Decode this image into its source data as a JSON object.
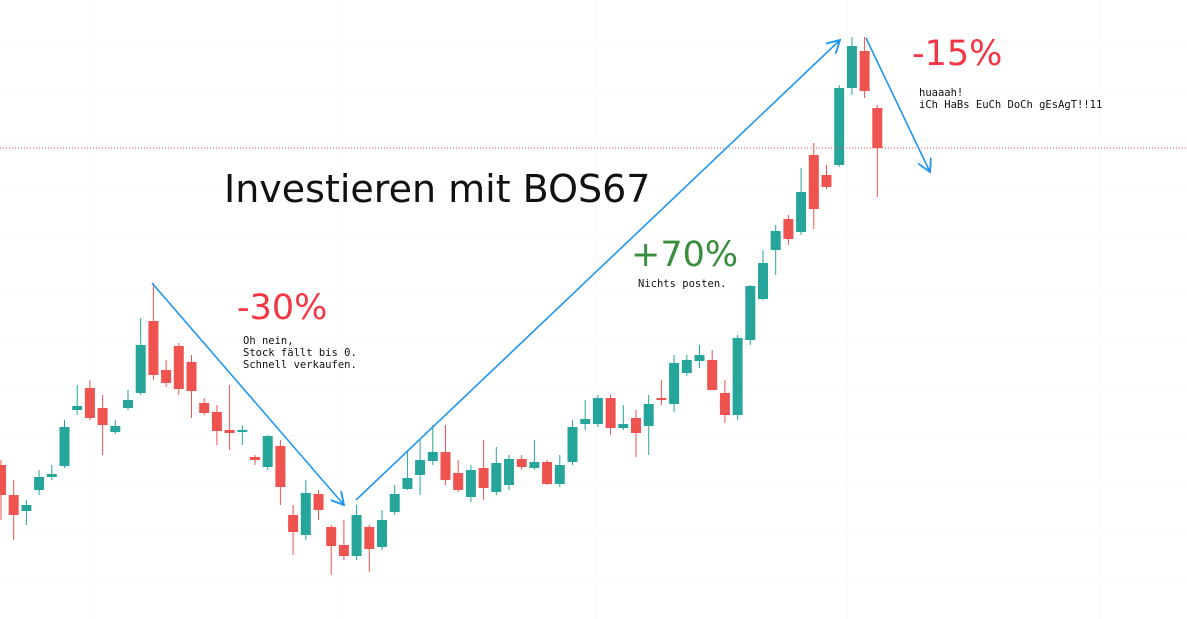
{
  "chart_data": {
    "type": "candlestick",
    "title": "Investieren mit BOS67",
    "up_color": "#26a69a",
    "down_color": "#ef5350",
    "ylim": [
      0,
      619
    ],
    "annotations": [
      {
        "label": "-30%",
        "color": "#f23645",
        "note": [
          "Oh nein,",
          "Stock fällt bis 0.",
          "Schnell verkaufen."
        ]
      },
      {
        "label": "+70%",
        "color": "#388e3c",
        "note": [
          "Nichts posten."
        ]
      },
      {
        "label": "-15%",
        "color": "#f23645",
        "note": [
          "huaaah!",
          "iCh HaBs EuCh DoCh gEsAgT!!11"
        ]
      }
    ],
    "series": [
      {
        "name": "open",
        "values": [
          154,
          124,
          108,
          129,
          142,
          153,
          209,
          231,
          211,
          187,
          211,
          226,
          298,
          249,
          273,
          257,
          216,
          207,
          189,
          187,
          162,
          152,
          173,
          104,
          84,
          125,
          92,
          74,
          63,
          92,
          72,
          107,
          130,
          144,
          158,
          167,
          146,
          122,
          151,
          127,
          134,
          160,
          151,
          157,
          135,
          157,
          195,
          195,
          221,
          191,
          201,
          193,
          221,
          215,
          246,
          258,
          259,
          226,
          204,
          279,
          320,
          369,
          400,
          387,
          464,
          444,
          454,
          531,
          568,
          511
        ]
      },
      {
        "name": "high",
        "values": [
          159,
          139,
          119,
          149,
          154,
          199,
          234,
          239,
          224,
          199,
          229,
          301,
          336,
          259,
          276,
          264,
          221,
          214,
          234,
          194,
          164,
          184,
          179,
          114,
          139,
          129,
          94,
          99,
          114,
          94,
          109,
          134,
          169,
          179,
          194,
          194,
          159,
          154,
          179,
          172,
          164,
          164,
          179,
          159,
          164,
          199,
          219,
          224,
          224,
          214,
          209,
          224,
          239,
          264,
          264,
          274,
          269,
          239,
          284,
          334,
          369,
          394,
          404,
          451,
          476,
          454,
          534,
          582,
          582,
          514
        ]
      },
      {
        "name": "low",
        "values": [
          99,
          79,
          94,
          124,
          139,
          151,
          204,
          199,
          164,
          185,
          209,
          224,
          239,
          232,
          224,
          201,
          204,
          174,
          169,
          174,
          154,
          149,
          114,
          64,
          79,
          99,
          44,
          59,
          59,
          47,
          69,
          104,
          129,
          124,
          154,
          134,
          127,
          117,
          119,
          124,
          129,
          149,
          149,
          134,
          132,
          154,
          189,
          192,
          184,
          189,
          162,
          164,
          214,
          207,
          243,
          251,
          229,
          196,
          199,
          274,
          319,
          344,
          374,
          384,
          390,
          430,
          452,
          524,
          521,
          422
        ]
      },
      {
        "name": "close",
        "values": [
          124,
          104,
          114,
          142,
          145,
          192,
          213,
          201,
          194,
          193,
          219,
          274,
          244,
          236,
          230,
          228,
          206,
          188,
          186,
          189,
          159,
          183,
          132,
          87,
          126,
          109,
          73,
          63,
          104,
          70,
          99,
          125,
          141,
          159,
          167,
          139,
          129,
          149,
          131,
          156,
          160,
          152,
          157,
          135,
          154,
          192,
          200,
          221,
          191,
          195,
          186,
          215,
          219,
          256,
          259,
          264,
          229,
          204,
          281,
          333,
          356,
          388,
          380,
          427,
          410,
          432,
          531,
          573,
          528,
          471
        ]
      }
    ]
  }
}
